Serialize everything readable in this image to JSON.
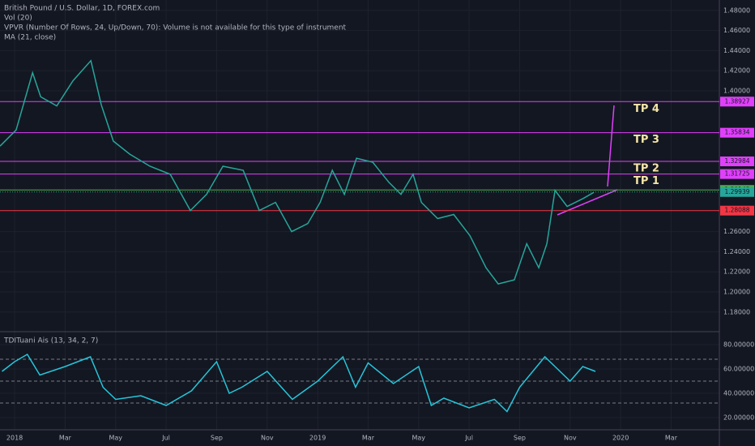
{
  "chart_data": [
    {
      "type": "line",
      "title": "British Pound / U.S. Dollar, 1D, FOREX.com",
      "legend_lines": [
        "Vol (20)",
        "VPVR (Number Of Rows, 24, Up/Down, 70): Volume is not available for this type of instrument",
        "MA (21, close)"
      ],
      "xlim": [
        -0.58,
        27.91
      ],
      "ylim": [
        1.1613,
        1.4903
      ],
      "grid": true,
      "xticks": [
        {
          "value": 0,
          "label": "2018"
        },
        {
          "value": 2,
          "label": "Mar"
        },
        {
          "value": 4,
          "label": "May"
        },
        {
          "value": 6,
          "label": "Jul"
        },
        {
          "value": 8,
          "label": "Sep"
        },
        {
          "value": 10,
          "label": "Nov"
        },
        {
          "value": 12,
          "label": "2019"
        },
        {
          "value": 14,
          "label": "Mar"
        },
        {
          "value": 16,
          "label": "May"
        },
        {
          "value": 18,
          "label": "Jul"
        },
        {
          "value": 20,
          "label": "Sep"
        },
        {
          "value": 22,
          "label": "Nov"
        },
        {
          "value": 24,
          "label": "2020"
        },
        {
          "value": 26,
          "label": "Mar"
        }
      ],
      "yticks": [
        {
          "value": 1.48,
          "label": "1.48000"
        },
        {
          "value": 1.46,
          "label": "1.46000"
        },
        {
          "value": 1.44,
          "label": "1.44000"
        },
        {
          "value": 1.42,
          "label": "1.42000"
        },
        {
          "value": 1.4,
          "label": "1.40000"
        },
        {
          "value": 1.26,
          "label": "1.26000"
        },
        {
          "value": 1.24,
          "label": "1.24000"
        },
        {
          "value": 1.22,
          "label": "1.22000"
        },
        {
          "value": 1.2,
          "label": "1.20000"
        },
        {
          "value": 1.18,
          "label": "1.18000"
        }
      ],
      "series": [
        {
          "color": "#26a69a",
          "x": [
            -0.58,
            0.06,
            0.71,
            1.03,
            1.67,
            2.31,
            3.02,
            3.43,
            3.91,
            4.56,
            5.36,
            6.16,
            6.96,
            7.6,
            8.25,
            9.05,
            9.69,
            10.33,
            10.97,
            11.61,
            12.1,
            12.58,
            13.06,
            13.54,
            14.18,
            14.82,
            15.3,
            15.78,
            16.11,
            16.75,
            17.39,
            18.03,
            18.67,
            19.15,
            19.79,
            20.28,
            20.76,
            21.08,
            21.4,
            21.88,
            22.52,
            22.94
          ],
          "values": [
            1.345,
            1.361,
            1.418,
            1.394,
            1.385,
            1.41,
            1.43,
            1.386,
            1.35,
            1.337,
            1.325,
            1.317,
            1.281,
            1.297,
            1.325,
            1.321,
            1.281,
            1.289,
            1.26,
            1.268,
            1.289,
            1.321,
            1.297,
            1.333,
            1.329,
            1.309,
            1.297,
            1.317,
            1.289,
            1.273,
            1.277,
            1.256,
            1.224,
            1.208,
            1.212,
            1.248,
            1.224,
            1.248,
            1.301,
            1.285,
            1.293,
            1.299
          ]
        }
      ],
      "levels": [
        {
          "value": 1.38927,
          "label": "1.38927",
          "color": "#e040fb",
          "tp": "TP 4"
        },
        {
          "value": 1.35834,
          "label": "1.35834",
          "color": "#e040fb",
          "tp": "TP 3"
        },
        {
          "value": 1.32984,
          "label": "1.32984",
          "color": "#e040fb",
          "tp": "TP 2"
        },
        {
          "value": 1.31725,
          "label": "1.31725",
          "color": "#e040fb",
          "tp": "TP 1"
        },
        {
          "value": 1.30143,
          "label": "1.30143",
          "color": "#4caf50"
        },
        {
          "value": 1.28088,
          "label": "1.28088",
          "color": "#f23645"
        }
      ],
      "last_price": {
        "value": 1.29939,
        "label": "1.29939",
        "color": "#26a69a"
      }
    },
    {
      "type": "line",
      "title": "TDITuani Ais (13, 34, 2, 7)",
      "xlim": [
        -0.58,
        27.91
      ],
      "ylim": [
        10,
        90
      ],
      "yticks": [
        {
          "value": 20,
          "label": "20.00000"
        },
        {
          "value": 40,
          "label": "40.00000"
        },
        {
          "value": 60,
          "label": "60.00000"
        },
        {
          "value": 80,
          "label": "80.00000"
        }
      ],
      "levels": [
        68,
        50,
        32
      ],
      "series": [
        {
          "color": "#26c6da",
          "x": [
            -0.5,
            0,
            0.5,
            1,
            2,
            3,
            3.5,
            4,
            5,
            6,
            7,
            8,
            8.5,
            9,
            10,
            11,
            12,
            13,
            13.5,
            14,
            15,
            16,
            16.5,
            17,
            18,
            19,
            19.5,
            20,
            21,
            21.5,
            22,
            22.5,
            23
          ],
          "values": [
            58,
            66,
            72,
            55,
            62,
            70,
            45,
            35,
            38,
            30,
            42,
            66,
            40,
            45,
            58,
            35,
            50,
            70,
            45,
            65,
            48,
            62,
            30,
            36,
            28,
            35,
            25,
            45,
            70,
            60,
            50,
            62,
            58
          ]
        }
      ]
    }
  ]
}
